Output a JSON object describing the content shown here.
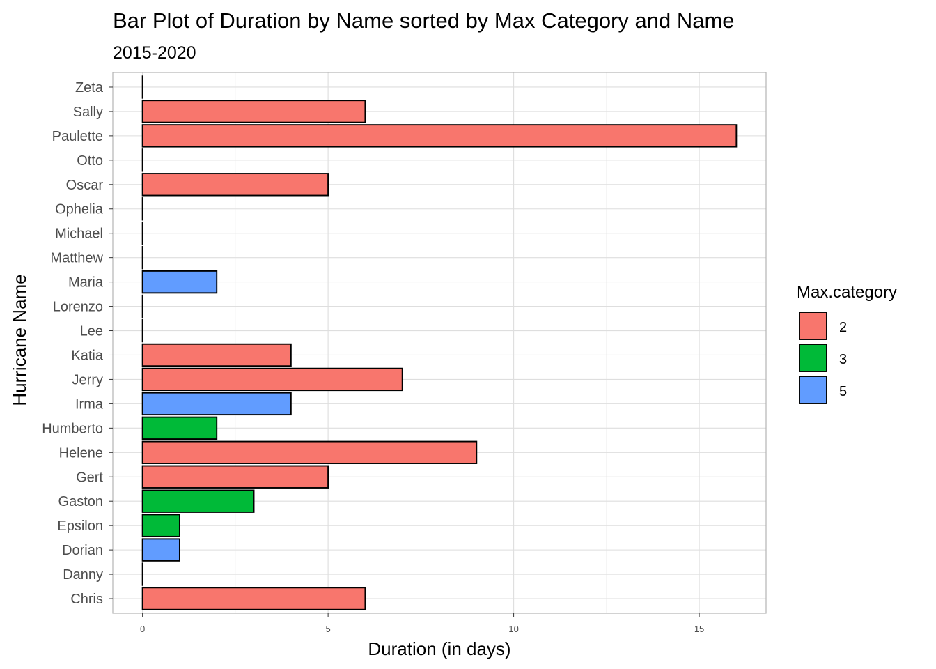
{
  "chart_data": {
    "type": "bar",
    "orientation": "horizontal",
    "title": "Bar Plot of Duration by Name sorted by Max Category and Name",
    "subtitle": "2015-2020",
    "xlabel": "Duration (in days)",
    "ylabel": "Hurricane Name",
    "xlim": [
      -0.8,
      16.8
    ],
    "xticks": [
      0,
      5,
      10,
      15
    ],
    "xtick_labels": [
      "0",
      "5",
      "10",
      "15"
    ],
    "grid": true,
    "legend": {
      "title": "Max.category",
      "placement": "right",
      "entries": [
        {
          "label": "2",
          "color": "#F8766D"
        },
        {
          "label": "3",
          "color": "#00BA38"
        },
        {
          "label": "5",
          "color": "#619CFF"
        }
      ]
    },
    "categories": [
      "Zeta",
      "Sally",
      "Paulette",
      "Otto",
      "Oscar",
      "Ophelia",
      "Michael",
      "Matthew",
      "Maria",
      "Lorenzo",
      "Lee",
      "Katia",
      "Jerry",
      "Irma",
      "Humberto",
      "Helene",
      "Gert",
      "Gaston",
      "Epsilon",
      "Dorian",
      "Danny",
      "Chris"
    ],
    "values": [
      0,
      6,
      16,
      0,
      5,
      0,
      0,
      0,
      2,
      0,
      0,
      4,
      7,
      4,
      2,
      9,
      5,
      3,
      1,
      1,
      0,
      6
    ],
    "max_category": [
      "2",
      "2",
      "2",
      "2",
      "2",
      "2",
      "2",
      "2",
      "5",
      "2",
      "2",
      "2",
      "2",
      "5",
      "3",
      "2",
      "2",
      "3",
      "3",
      "5",
      "2",
      "2"
    ]
  }
}
